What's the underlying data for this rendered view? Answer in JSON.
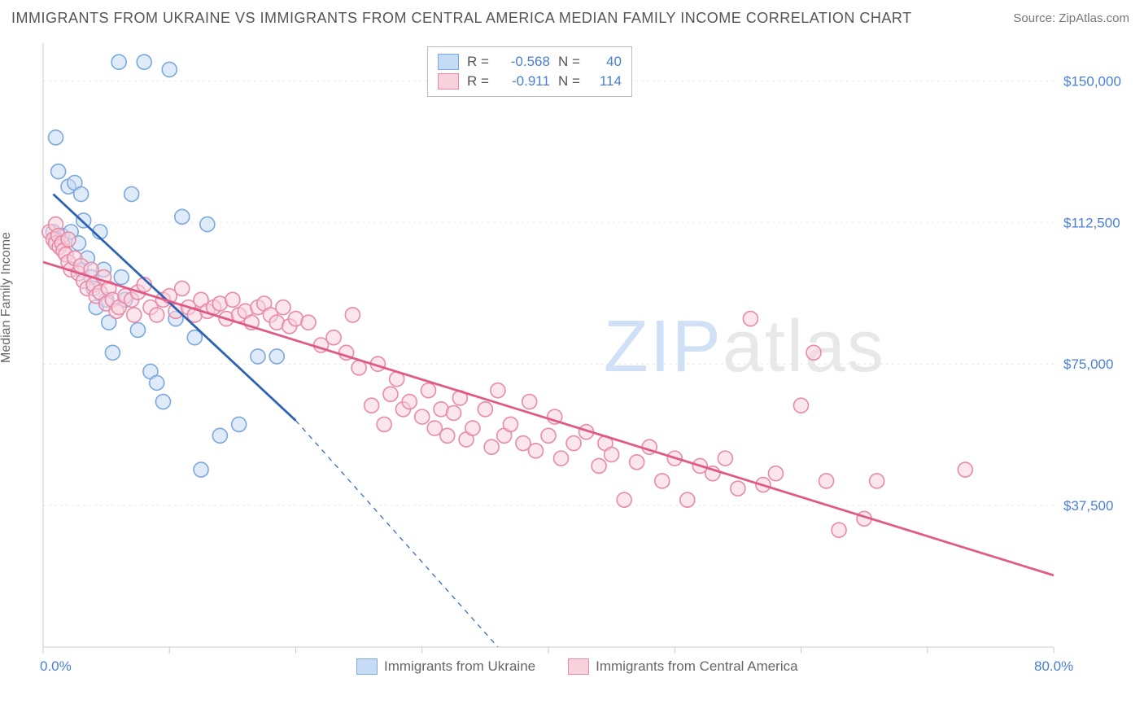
{
  "title": "IMMIGRANTS FROM UKRAINE VS IMMIGRANTS FROM CENTRAL AMERICA MEDIAN FAMILY INCOME CORRELATION CHART",
  "source_label": "Source:",
  "source_value": "ZipAtlas.com",
  "y_axis_label": "Median Family Income",
  "watermark_a": "ZIP",
  "watermark_b": "atlas",
  "chart": {
    "type": "scatter",
    "background_color": "#ffffff",
    "grid_color": "#e7e7e7",
    "axis_color": "#cccccc",
    "xlim": [
      0,
      80
    ],
    "ylim": [
      0,
      160000
    ],
    "x_ticks": [
      0,
      10,
      20,
      30,
      40,
      50,
      60,
      70,
      80
    ],
    "x_tick_labels_visible": {
      "0": "0.0%",
      "80": "80.0%"
    },
    "y_ticks": [
      37500,
      75000,
      112500,
      150000
    ],
    "y_tick_labels": [
      "$37,500",
      "$75,000",
      "$112,500",
      "$150,000"
    ],
    "label_color": "#4a7fd6",
    "label_fontsize": 17,
    "axis_label_color": "#666666",
    "marker_radius": 9,
    "marker_stroke_width": 1.6,
    "line_width": 2.8,
    "dash_pattern": "6,6",
    "series": [
      {
        "name": "Immigrants from Ukraine",
        "fill": "#c6dbf4",
        "stroke": "#7ba8de",
        "line_color": "#2e63b3",
        "R": "-0.568",
        "N": "40",
        "trend": {
          "x1": 0.8,
          "y1": 120000,
          "x2": 20,
          "y2": 60000,
          "dash_to_x": 36,
          "dash_to_y": 0
        },
        "points": [
          [
            1.0,
            135000
          ],
          [
            1.2,
            126000
          ],
          [
            0.8,
            110000
          ],
          [
            1.5,
            109000
          ],
          [
            1.0,
            108000
          ],
          [
            2.0,
            122000
          ],
          [
            2.2,
            110000
          ],
          [
            2.5,
            123000
          ],
          [
            2.8,
            107000
          ],
          [
            3.0,
            100000
          ],
          [
            3.0,
            120000
          ],
          [
            3.2,
            113000
          ],
          [
            3.5,
            103000
          ],
          [
            3.8,
            98000
          ],
          [
            4.0,
            95000
          ],
          [
            4.2,
            90000
          ],
          [
            4.5,
            110000
          ],
          [
            4.8,
            100000
          ],
          [
            5.0,
            92000
          ],
          [
            5.2,
            86000
          ],
          [
            5.5,
            78000
          ],
          [
            6.0,
            155000
          ],
          [
            6.2,
            98000
          ],
          [
            6.5,
            92000
          ],
          [
            7.0,
            120000
          ],
          [
            7.5,
            84000
          ],
          [
            8.0,
            155000
          ],
          [
            8.5,
            73000
          ],
          [
            9.0,
            70000
          ],
          [
            9.5,
            65000
          ],
          [
            10.0,
            153000
          ],
          [
            10.5,
            87000
          ],
          [
            11.0,
            114000
          ],
          [
            12.0,
            82000
          ],
          [
            12.5,
            47000
          ],
          [
            13.0,
            112000
          ],
          [
            14.0,
            56000
          ],
          [
            15.5,
            59000
          ],
          [
            17.0,
            77000
          ],
          [
            18.5,
            77000
          ]
        ]
      },
      {
        "name": "Immigrants from Central America",
        "fill": "#f7d2dd",
        "stroke": "#e88aa8",
        "line_color": "#e05a87",
        "R": "-0.911",
        "N": "114",
        "trend": {
          "x1": 0,
          "y1": 102000,
          "x2": 80,
          "y2": 19000
        },
        "points": [
          [
            0.5,
            110000
          ],
          [
            0.8,
            108000
          ],
          [
            1.0,
            107000
          ],
          [
            1.0,
            112000
          ],
          [
            1.2,
            109000
          ],
          [
            1.3,
            106000
          ],
          [
            1.5,
            107000
          ],
          [
            1.6,
            105000
          ],
          [
            1.8,
            104000
          ],
          [
            2.0,
            108000
          ],
          [
            2.0,
            102000
          ],
          [
            2.2,
            100000
          ],
          [
            2.5,
            103000
          ],
          [
            2.8,
            99000
          ],
          [
            3.0,
            101000
          ],
          [
            3.2,
            97000
          ],
          [
            3.5,
            95000
          ],
          [
            3.8,
            100000
          ],
          [
            4.0,
            96000
          ],
          [
            4.2,
            93000
          ],
          [
            4.5,
            94000
          ],
          [
            4.8,
            98000
          ],
          [
            5.0,
            91000
          ],
          [
            5.2,
            95000
          ],
          [
            5.5,
            92000
          ],
          [
            5.8,
            89000
          ],
          [
            6.0,
            90000
          ],
          [
            6.5,
            93000
          ],
          [
            7.0,
            92000
          ],
          [
            7.2,
            88000
          ],
          [
            7.5,
            94000
          ],
          [
            8.0,
            96000
          ],
          [
            8.5,
            90000
          ],
          [
            9.0,
            88000
          ],
          [
            9.5,
            92000
          ],
          [
            10.0,
            93000
          ],
          [
            10.5,
            89000
          ],
          [
            11.0,
            95000
          ],
          [
            11.5,
            90000
          ],
          [
            12.0,
            88000
          ],
          [
            12.5,
            92000
          ],
          [
            13.0,
            89000
          ],
          [
            13.5,
            90000
          ],
          [
            14.0,
            91000
          ],
          [
            14.5,
            87000
          ],
          [
            15.0,
            92000
          ],
          [
            15.5,
            88000
          ],
          [
            16.0,
            89000
          ],
          [
            16.5,
            86000
          ],
          [
            17.0,
            90000
          ],
          [
            17.5,
            91000
          ],
          [
            18.0,
            88000
          ],
          [
            18.5,
            86000
          ],
          [
            19.0,
            90000
          ],
          [
            19.5,
            85000
          ],
          [
            20.0,
            87000
          ],
          [
            21.0,
            86000
          ],
          [
            22.0,
            80000
          ],
          [
            23.0,
            82000
          ],
          [
            24.0,
            78000
          ],
          [
            24.5,
            88000
          ],
          [
            25.0,
            74000
          ],
          [
            26.0,
            64000
          ],
          [
            26.5,
            75000
          ],
          [
            27.0,
            59000
          ],
          [
            27.5,
            67000
          ],
          [
            28.0,
            71000
          ],
          [
            28.5,
            63000
          ],
          [
            29.0,
            65000
          ],
          [
            30.0,
            61000
          ],
          [
            30.5,
            68000
          ],
          [
            31.0,
            58000
          ],
          [
            31.5,
            63000
          ],
          [
            32.0,
            56000
          ],
          [
            32.5,
            62000
          ],
          [
            33.0,
            66000
          ],
          [
            33.5,
            55000
          ],
          [
            34.0,
            58000
          ],
          [
            35.0,
            63000
          ],
          [
            35.5,
            53000
          ],
          [
            36.0,
            68000
          ],
          [
            36.5,
            56000
          ],
          [
            37.0,
            59000
          ],
          [
            38.0,
            54000
          ],
          [
            38.5,
            65000
          ],
          [
            39.0,
            52000
          ],
          [
            40.0,
            56000
          ],
          [
            40.5,
            61000
          ],
          [
            41.0,
            50000
          ],
          [
            42.0,
            54000
          ],
          [
            43.0,
            57000
          ],
          [
            44.0,
            48000
          ],
          [
            44.5,
            54000
          ],
          [
            45.0,
            51000
          ],
          [
            46.0,
            39000
          ],
          [
            47.0,
            49000
          ],
          [
            48.0,
            53000
          ],
          [
            49.0,
            44000
          ],
          [
            50.0,
            50000
          ],
          [
            51.0,
            39000
          ],
          [
            52.0,
            48000
          ],
          [
            53.0,
            46000
          ],
          [
            54.0,
            50000
          ],
          [
            55.0,
            42000
          ],
          [
            56.0,
            87000
          ],
          [
            57.0,
            43000
          ],
          [
            58.0,
            46000
          ],
          [
            60.0,
            64000
          ],
          [
            61.0,
            78000
          ],
          [
            62.0,
            44000
          ],
          [
            63.0,
            31000
          ],
          [
            65.0,
            34000
          ],
          [
            66.0,
            44000
          ],
          [
            73.0,
            47000
          ]
        ]
      }
    ],
    "legend_top_labels": {
      "R": "R =",
      "N": "N ="
    },
    "legend_bottom": [
      "Immigrants from Ukraine",
      "Immigrants from Central America"
    ]
  }
}
